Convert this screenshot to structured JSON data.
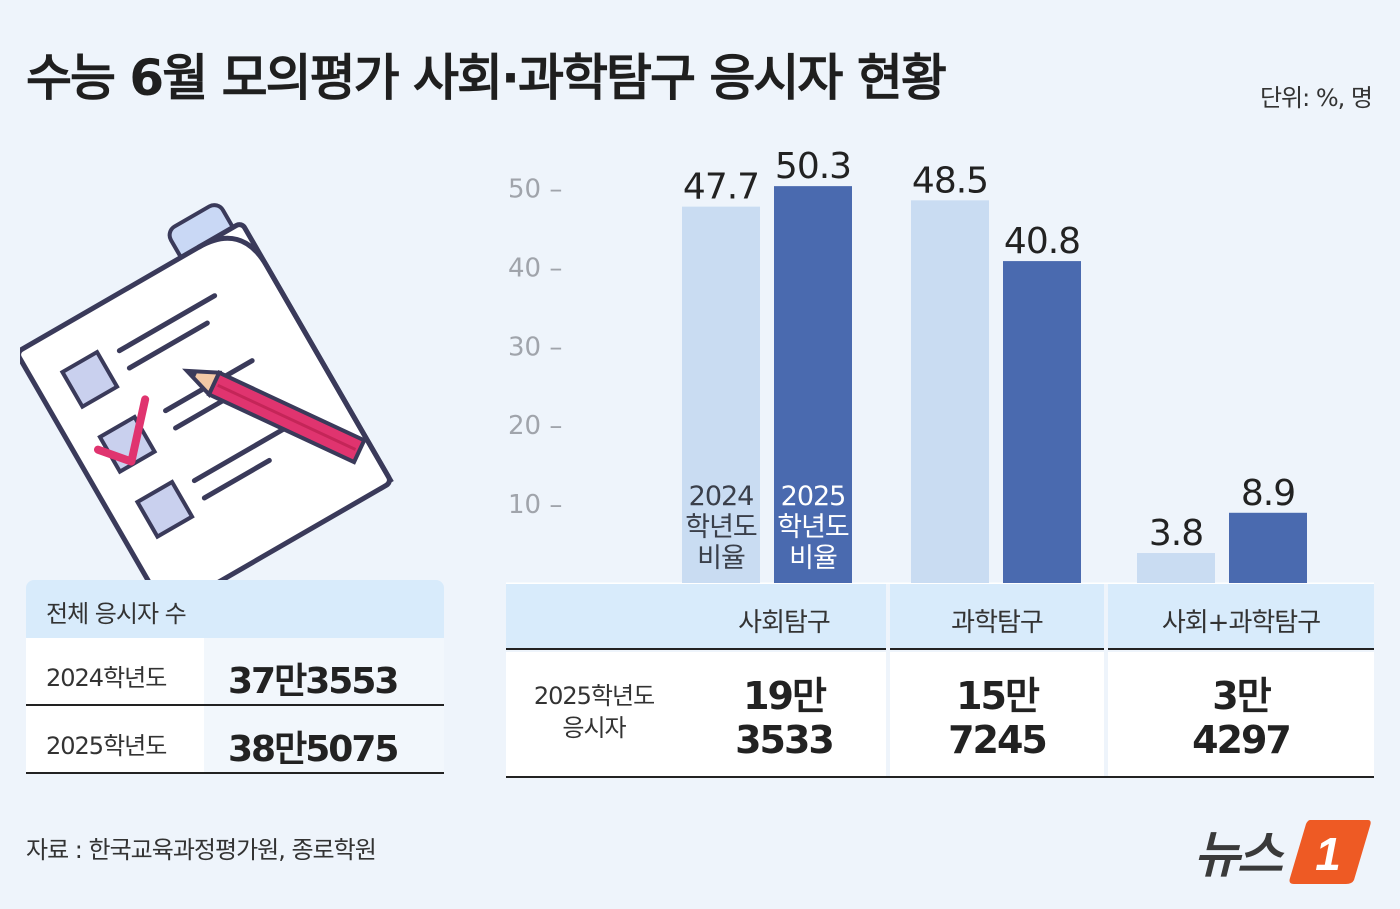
{
  "title": "수능 6월 모의평가 사회·과학탐구 응시자 현황",
  "unit": "단위: %, 명",
  "total": {
    "header": "전체 응시자 수",
    "rows": [
      {
        "year": "2024학년도",
        "value": "37만3553"
      },
      {
        "year": "2025학년도",
        "value": "38만5075"
      }
    ]
  },
  "chart_data": {
    "type": "bar",
    "categories": [
      "사회탐구",
      "과학탐구",
      "사회+과학탐구"
    ],
    "series": [
      {
        "name": "2024 학년도 비율",
        "values": [
          47.7,
          48.5,
          3.8
        ],
        "color": "#c9dcf2",
        "label_lines": [
          "2024",
          "학년도",
          "비율"
        ]
      },
      {
        "name": "2025 학년도 비율",
        "values": [
          50.3,
          40.8,
          8.9
        ],
        "color": "#4a6aaf",
        "label_lines": [
          "2025",
          "학년도",
          "비율"
        ]
      }
    ],
    "value_labels": [
      [
        "47.7",
        "48.5",
        "3.8"
      ],
      [
        "50.3",
        "40.8",
        "8.9"
      ]
    ],
    "yticks": [
      10,
      20,
      30,
      40,
      50
    ],
    "ytick_labels": [
      "10 –",
      "20 –",
      "30 –",
      "40 –",
      "50 –"
    ],
    "ylim": [
      0,
      50.3
    ],
    "grid": false
  },
  "applicants": {
    "label_line1": "2025학년도",
    "label_line2": "응시자",
    "values": [
      {
        "line1": "19만",
        "line2": "3533"
      },
      {
        "line1": "15만",
        "line2": "7245"
      },
      {
        "line1": "3만",
        "line2": "4297"
      }
    ]
  },
  "source": "자료 : 한국교육과정평가원, 종로학원",
  "logo": {
    "text": "뉴스",
    "mark": "1"
  }
}
